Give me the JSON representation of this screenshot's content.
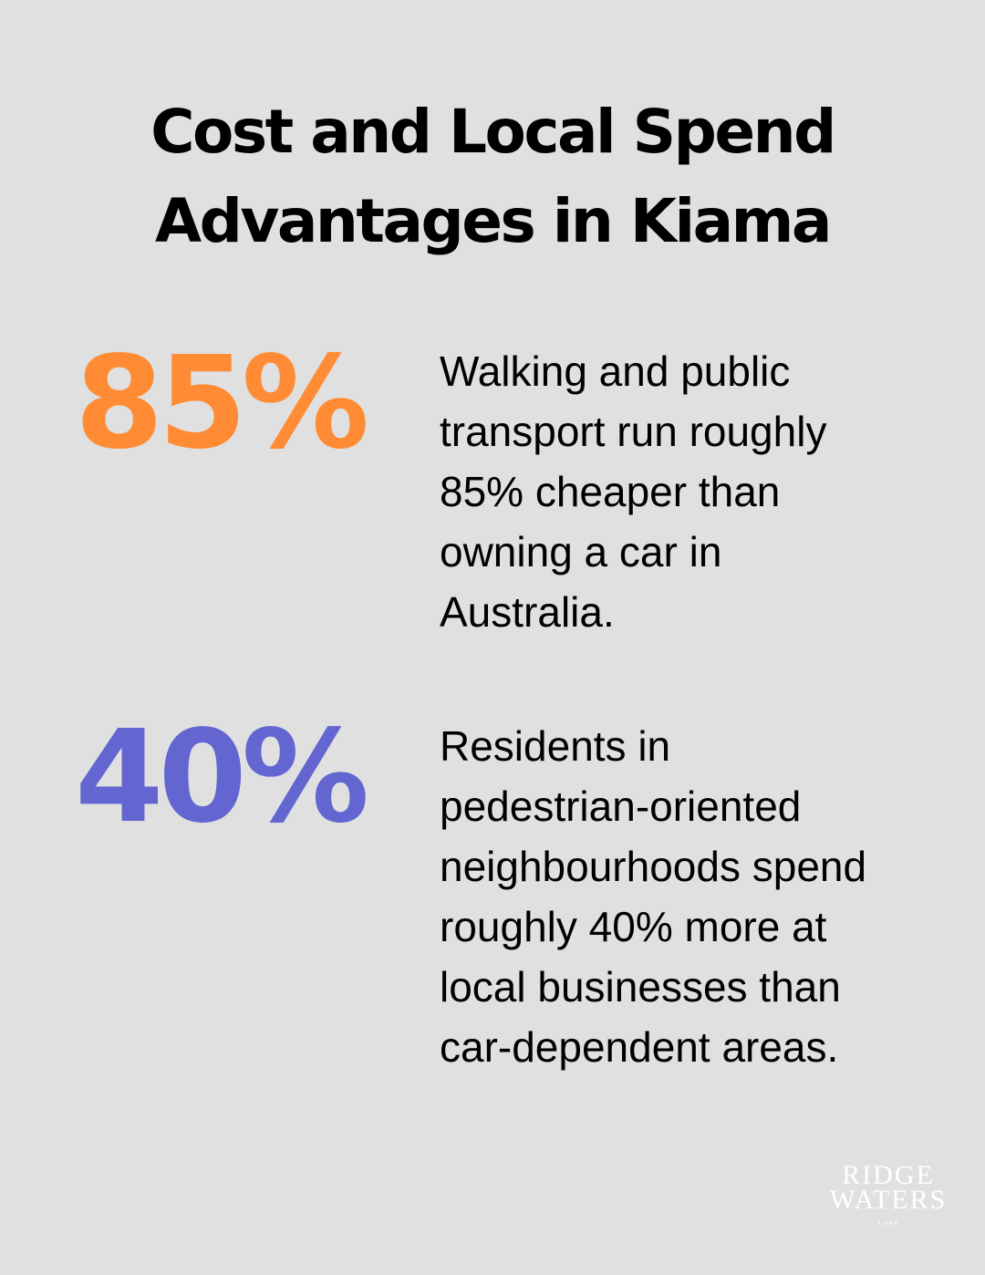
{
  "title": {
    "lines": [
      "Cost and Local Spend",
      "Advantages in Kiama"
    ]
  },
  "stats": [
    {
      "value": "85%",
      "color": "#ff8c35",
      "description_lines": [
        "Walking and public",
        "transport run roughly",
        "85% cheaper than",
        "owning a car in",
        "Australia."
      ]
    },
    {
      "value": "40%",
      "color": "#6366d1",
      "description_lines": [
        "Residents in",
        "pedestrian-oriented",
        "neighbourhoods spend",
        "roughly 40% more at",
        "local businesses than",
        "car-dependent areas."
      ]
    }
  ],
  "logo": {
    "line1": "RIDGE",
    "line2": "WATERS",
    "line3": "KIAMA"
  },
  "colors": {
    "background": "#dfe0df",
    "text": "#000000",
    "logo": "#ffffff"
  }
}
